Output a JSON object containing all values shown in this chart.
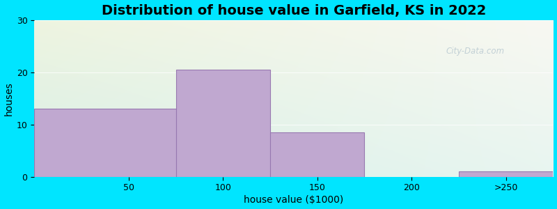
{
  "title": "Distribution of house value in Garfield, KS in 2022",
  "xlabel": "house value ($1000)",
  "ylabel": "houses",
  "bar_values": [
    13,
    20.5,
    8.5,
    0,
    1
  ],
  "bar_color": "#c0a8d0",
  "bar_edge_color": "#9878b0",
  "bar_lefts": [
    0,
    75,
    125,
    175,
    225
  ],
  "bar_widths": [
    75,
    50,
    50,
    50,
    50
  ],
  "xlim": [
    0,
    275
  ],
  "ylim": [
    0,
    30
  ],
  "yticks": [
    0,
    10,
    20,
    30
  ],
  "xticks": [
    50,
    100,
    150,
    200
  ],
  "xtick_extra": ">250",
  "xtick_extra_pos": 250,
  "bg_outer": "#00e5ff",
  "bg_plot_top_left": "#eef4e0",
  "bg_plot_top_right": "#f5f5f0",
  "bg_plot_bottom_left": "#d8f0e8",
  "bg_plot_bottom_right": "#e8f5f0",
  "title_fontsize": 14,
  "axis_label_fontsize": 10,
  "tick_fontsize": 9,
  "watermark_text": "City-Data.com"
}
